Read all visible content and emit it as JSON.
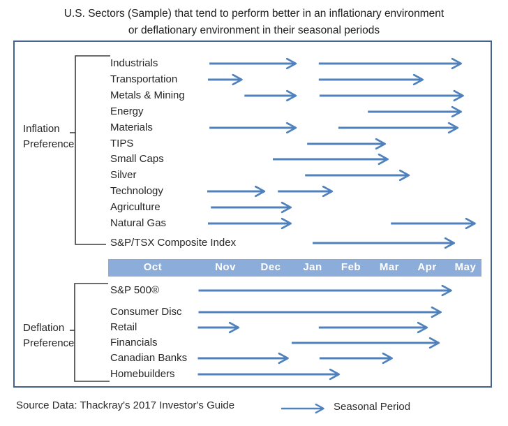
{
  "title": {
    "line1": "U.S. Sectors (Sample) that tend to perform better in an inflationary environment",
    "line2": "or deflationary environment in their seasonal periods"
  },
  "source_line": "Source Data: Thackray's 2017 Investor's Guide",
  "legend": {
    "label": "Seasonal Period"
  },
  "colors": {
    "arrow": "#4f81bd",
    "axis_bar": "#8cacd9",
    "axis_text": "#ffffff",
    "box_border": "#45628b",
    "bracket": "#3d3d3d",
    "text": "#262626"
  },
  "chart_data": {
    "type": "bar",
    "subtype": "gantt-arrow-timeline",
    "title": "U.S. Sectors (Sample) that tend to perform better in an inflationary environment or deflationary environment in their seasonal periods",
    "categories": [
      "Oct",
      "Nov",
      "Dec",
      "Jan",
      "Feb",
      "Mar",
      "Apr",
      "May"
    ],
    "axis_note": "arrow endpoints are in month-label units: 0 = Oct label, 1 = Nov label, ... 7 = May label (linear between labels)",
    "legend_entry": "Seasonal Period",
    "sections": [
      {
        "label_line1": "Inflation",
        "label_line2": "Preference",
        "rows": [
          {
            "name": "Industrials",
            "arrows": [
              [
                0.78,
                2.62
              ],
              [
                3.16,
                6.91
              ]
            ]
          },
          {
            "name": "Transportation",
            "arrows": [
              [
                0.76,
                1.38
              ],
              [
                3.16,
                5.91
              ]
            ]
          },
          {
            "name": "Metals & Mining",
            "arrows": [
              [
                1.42,
                2.62
              ],
              [
                3.18,
                6.96
              ]
            ]
          },
          {
            "name": "Energy",
            "arrows": [
              [
                4.44,
                6.91
              ]
            ]
          },
          {
            "name": "Materials",
            "arrows": [
              [
                0.78,
                2.62
              ],
              [
                3.67,
                6.82
              ]
            ]
          },
          {
            "name": "TIPS",
            "arrows": [
              [
                2.87,
                4.91
              ]
            ]
          },
          {
            "name": "Small Caps",
            "arrows": [
              [
                2.05,
                4.98
              ]
            ]
          },
          {
            "name": "Silver",
            "arrows": [
              [
                2.82,
                5.54
              ]
            ]
          },
          {
            "name": "Technology",
            "arrows": [
              [
                0.75,
                1.88
              ],
              [
                2.17,
                3.53
              ]
            ]
          },
          {
            "name": "Agriculture",
            "arrows": [
              [
                0.8,
                2.5
              ]
            ]
          },
          {
            "name": "Natural Gas",
            "arrows": [
              [
                0.76,
                2.5
              ],
              [
                5.04,
                7.27
              ]
            ]
          },
          {
            "name": "S&P/TSX Composite Index",
            "arrows": [
              [
                3.0,
                6.73
              ]
            ]
          }
        ]
      },
      {
        "label_line1": "Deflation",
        "label_line2": "Preference",
        "rows": [
          {
            "name": "S&P 500®",
            "arrows": [
              [
                0.63,
                6.65
              ]
            ]
          },
          {
            "name": "Consumer Disc",
            "arrows": [
              [
                0.63,
                6.38
              ]
            ]
          },
          {
            "name": "Retail",
            "arrows": [
              [
                0.62,
                1.31
              ],
              [
                3.16,
                6.02
              ]
            ]
          },
          {
            "name": "Financials",
            "arrows": [
              [
                2.5,
                6.33
              ]
            ]
          },
          {
            "name": "Canadian Banks",
            "arrows": [
              [
                0.62,
                2.43
              ],
              [
                3.18,
                5.09
              ]
            ]
          },
          {
            "name": "Homebuilders",
            "arrows": [
              [
                0.62,
                3.71
              ]
            ]
          }
        ]
      }
    ]
  }
}
